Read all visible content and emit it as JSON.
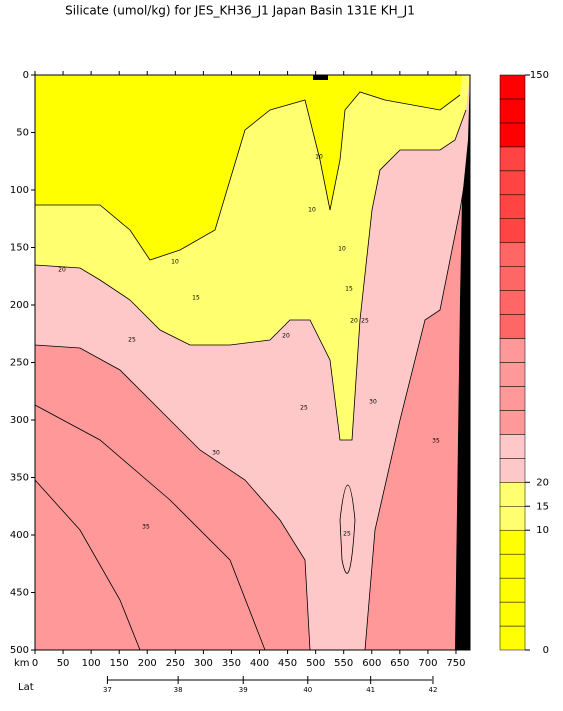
{
  "chart_data": {
    "type": "contour",
    "title": "Silicate (umol/kg) for JES_KH36_J1 Japan Basin 131E KH_J1",
    "xlabel": "km",
    "x2label": "Lat",
    "xlim": [
      0,
      775
    ],
    "xticks": [
      0,
      50,
      100,
      150,
      200,
      250,
      300,
      350,
      400,
      450,
      500,
      550,
      600,
      650,
      700,
      750
    ],
    "x2ticks": [
      {
        "value": 129,
        "label": "37"
      },
      {
        "value": 255,
        "label": "38"
      },
      {
        "value": 371,
        "label": "39"
      },
      {
        "value": 486,
        "label": "40"
      },
      {
        "value": 598,
        "label": "41"
      },
      {
        "value": 709,
        "label": "42"
      }
    ],
    "ylim": [
      0,
      500
    ],
    "yticks": [
      0,
      50,
      100,
      150,
      200,
      250,
      300,
      350,
      400,
      450,
      500
    ],
    "colorbar": {
      "bins": [
        0,
        2,
        4,
        6,
        8,
        10,
        15,
        20,
        25,
        30,
        35,
        40,
        45,
        50,
        55,
        60,
        70,
        80,
        90,
        100,
        110,
        120,
        130,
        140,
        150
      ],
      "colors": [
        "#ffff00",
        "#ffff00",
        "#ffff00",
        "#ffff00",
        "#ffff00",
        "#ffff70",
        "#ffff70",
        "#ffc8c8",
        "#ffc8c8",
        "#ff9999",
        "#ff9999",
        "#ff9999",
        "#ff9999",
        "#ff6666",
        "#ff6666",
        "#ff6666",
        "#ff6666",
        "#ff4444",
        "#ff4444",
        "#ff4444",
        "#ff4444",
        "#ff0000",
        "#ff0000",
        "#ff0000"
      ],
      "ticks": [
        0,
        10,
        15,
        20,
        150
      ]
    },
    "contour_labels": [
      20,
      10,
      15,
      25,
      20,
      25,
      30,
      35,
      10,
      10,
      10,
      15,
      20,
      25,
      30,
      35,
      25
    ]
  }
}
